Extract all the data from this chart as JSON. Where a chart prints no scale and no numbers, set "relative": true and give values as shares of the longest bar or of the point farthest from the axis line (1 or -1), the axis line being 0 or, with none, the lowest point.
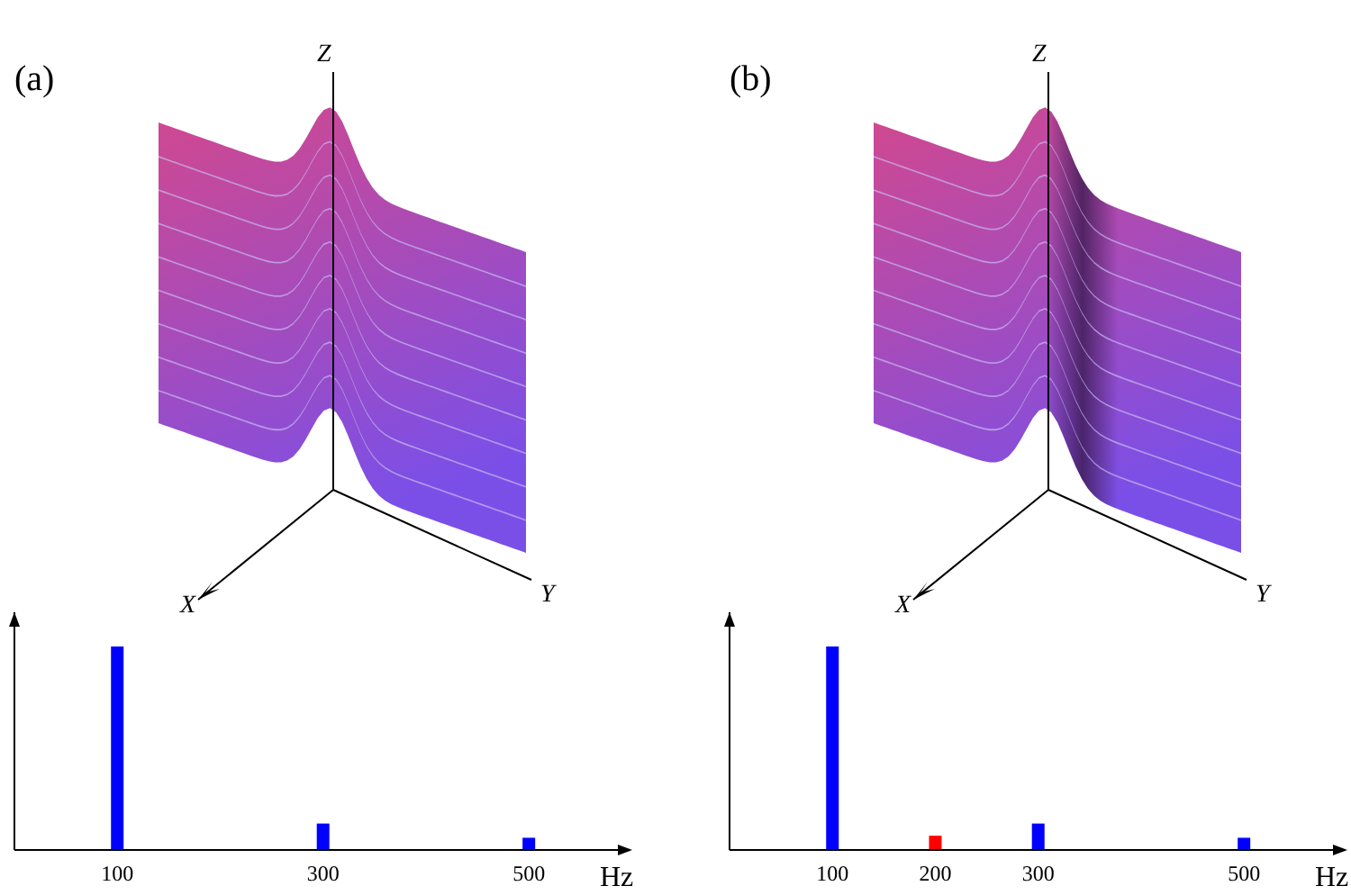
{
  "chart_data": [
    {
      "type": "bar",
      "title": "(a)",
      "x": [
        100,
        300,
        500
      ],
      "values": [
        1,
        0.13,
        0.06
      ],
      "colors": [
        "#0000ff",
        "#0000ff",
        "#0000ff"
      ],
      "relative": true,
      "xlim": [
        0,
        590
      ],
      "xticks": [
        100,
        300,
        500
      ],
      "xlabel": "Hz",
      "annotations": [
        "Z",
        "X",
        "Y"
      ]
    },
    {
      "type": "bar",
      "title": "(b)",
      "x": [
        100,
        200,
        300,
        500
      ],
      "values": [
        1,
        0.07,
        0.13,
        0.06
      ],
      "colors": [
        "#0000ff",
        "#ff0000",
        "#0000ff",
        "#0000ff"
      ],
      "relative": true,
      "xlim": [
        0,
        590
      ],
      "xticks": [
        100,
        200,
        300,
        500
      ],
      "xlabel": "Hz",
      "annotations": [
        "Z",
        "X",
        "Y"
      ]
    }
  ]
}
